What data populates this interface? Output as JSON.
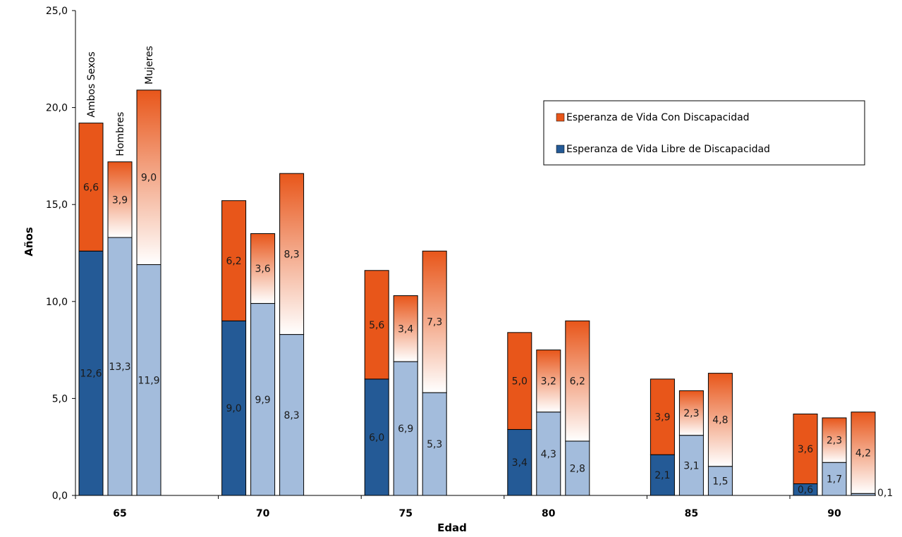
{
  "colors": {
    "libre_dark": "#245a96",
    "libre_light": "#a3bcdc",
    "con_top": "#e8561a",
    "con_bottom": "#ffffff",
    "outline": "#000000"
  },
  "chart_data": {
    "type": "bar",
    "stacked": true,
    "xlabel": "Edad",
    "ylabel": "Años",
    "ylim": [
      0,
      25
    ],
    "yticks": [
      "0,0",
      "5,0",
      "10,0",
      "15,0",
      "20,0",
      "25,0"
    ],
    "categories": [
      "65",
      "70",
      "75",
      "80",
      "85",
      "90"
    ],
    "groups": [
      "Ambos Sexos",
      "Hombres",
      "Mujeres"
    ],
    "legend": {
      "position": "top-right",
      "entries": [
        "Esperanza de Vida Con Discapacidad",
        "Esperanza de Vida Libre de Discapacidad"
      ]
    },
    "series": [
      {
        "name": "Esperanza de Vida Libre de Discapacidad",
        "values": {
          "Ambos Sexos": [
            12.6,
            9.0,
            6.0,
            3.4,
            2.1,
            0.6
          ],
          "Hombres": [
            13.3,
            9.9,
            6.9,
            4.3,
            3.1,
            1.7
          ],
          "Mujeres": [
            11.9,
            8.3,
            5.3,
            2.8,
            1.5,
            0.1
          ]
        },
        "labels": {
          "Ambos Sexos": [
            "12,6",
            "9,0",
            "6,0",
            "3,4",
            "2,1",
            "0,6"
          ],
          "Hombres": [
            "13,3",
            "9,9",
            "6,9",
            "4,3",
            "3,1",
            "1,7"
          ],
          "Mujeres": [
            "11,9",
            "8,3",
            "5,3",
            "2,8",
            "1,5",
            "0,1"
          ]
        }
      },
      {
        "name": "Esperanza de Vida Con Discapacidad",
        "values": {
          "Ambos Sexos": [
            6.6,
            6.2,
            5.6,
            5.0,
            3.9,
            3.6
          ],
          "Hombres": [
            3.9,
            3.6,
            3.4,
            3.2,
            2.3,
            2.3
          ],
          "Mujeres": [
            9.0,
            8.3,
            7.3,
            6.2,
            4.8,
            4.2
          ]
        },
        "labels": {
          "Ambos Sexos": [
            "6,6",
            "6,2",
            "5,6",
            "5,0",
            "3,9",
            "3,6"
          ],
          "Hombres": [
            "3,9",
            "3,6",
            "3,4",
            "3,2",
            "2,3",
            "2,3"
          ],
          "Mujeres": [
            "9,0",
            "8,3",
            "7,3",
            "6,2",
            "4,8",
            "4,2"
          ]
        }
      }
    ]
  }
}
